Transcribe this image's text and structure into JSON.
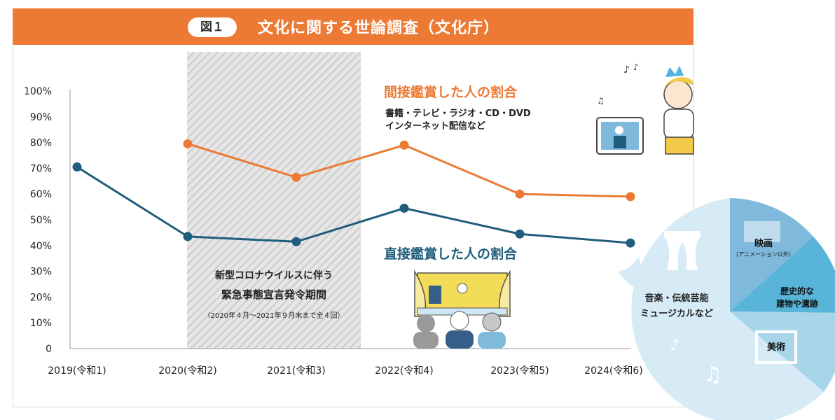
{
  "header": {
    "figure_label": "図１",
    "title": "文化に関する世論調査（文化庁）"
  },
  "chart_data": {
    "type": "line",
    "categories": [
      "2019(令和1)",
      "2020(令和2)",
      "2021(令和3)",
      "2022(令和4)",
      "2023(令和5)",
      "2024(令和6)"
    ],
    "y_ticks": [
      "100%",
      "90%",
      "80%",
      "70%",
      "60%",
      "50%",
      "40%",
      "30%",
      "20%",
      "10%",
      "0"
    ],
    "ylim": [
      0,
      100
    ],
    "grid": false,
    "series": [
      {
        "name": "間接鑑賞した人の割合",
        "description": [
          "書籍・テレビ・ラジオ・CD・DVD",
          "インターネット配信など"
        ],
        "color": "#ec7a35",
        "values": [
          null,
          79.5,
          66.5,
          79,
          60,
          59
        ]
      },
      {
        "name": "直接鑑賞した人の割合",
        "color": "#1f5d7c",
        "values": [
          70.5,
          43.5,
          41.5,
          54.5,
          44.5,
          41
        ]
      }
    ],
    "annotation": {
      "lines": [
        "新型コロナウイルスに伴う",
        "緊急事態宣言発令期間"
      ],
      "note": "（2020年４月～2021年９月末まで全４回）"
    }
  },
  "pie_labels": {
    "music": [
      "音楽・伝統芸能",
      "ミュージカルなど"
    ],
    "film": "映画",
    "film_note": "（アニメーション以外）",
    "historic": [
      "歴史的な",
      "建物や遺跡"
    ],
    "art": "美術"
  },
  "colors": {
    "banner": "#ec7a35",
    "indirect": "#ec7a35",
    "direct": "#1f5d7c",
    "pie_light": "#d6ebf6",
    "pie_film": "#7fb9dc",
    "pie_historic": "#58b4d8",
    "pie_art": "#a9d5ea"
  }
}
